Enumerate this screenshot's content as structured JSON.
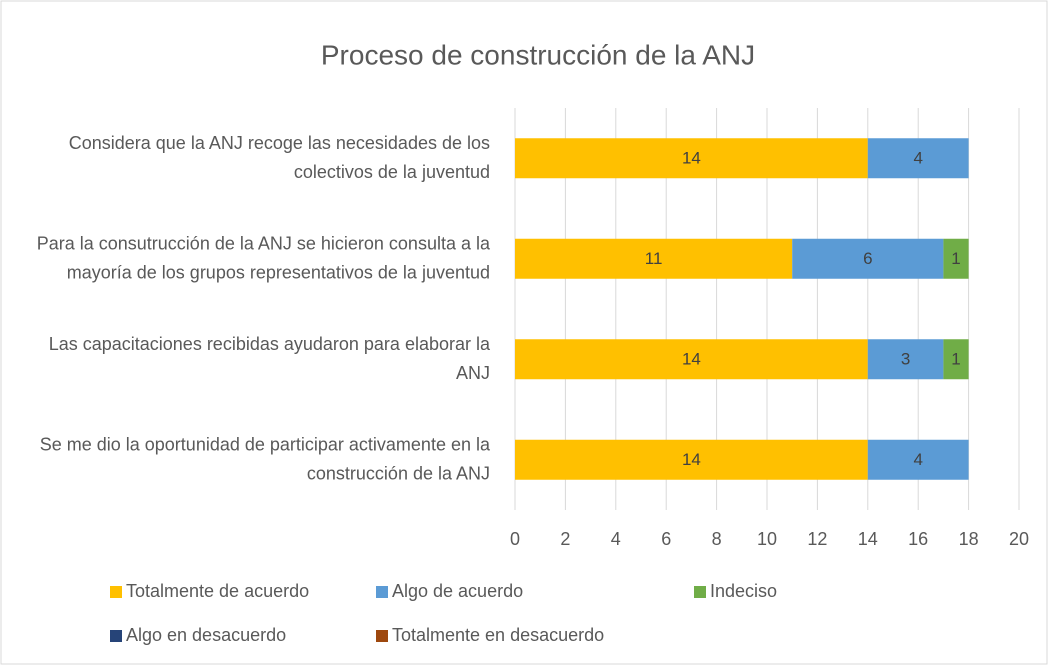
{
  "chart_data": {
    "type": "bar",
    "orientation": "horizontal",
    "stacked": true,
    "title": "Proceso de construcción de la ANJ",
    "categories": [
      "Considera que la ANJ recoge las necesidades de los colectivos de la juventud",
      "Para la consutrucción de la ANJ se hicieron consulta a la mayoría de los grupos representativos de la juventud",
      "Las capacitaciones recibidas ayudaron para elaborar la ANJ",
      "Se me dio la oportunidad de participar activamente en la construcción de la ANJ"
    ],
    "series": [
      {
        "name": "Totalmente de acuerdo",
        "color": "#FFC000",
        "values": [
          14,
          11,
          14,
          14
        ]
      },
      {
        "name": "Algo de acuerdo",
        "color": "#5B9BD5",
        "values": [
          4,
          6,
          3,
          4
        ]
      },
      {
        "name": "Indeciso",
        "color": "#70AD47",
        "values": [
          null,
          1,
          1,
          null
        ]
      },
      {
        "name": "Algo en desacuerdo",
        "color": "#264478",
        "values": [
          null,
          null,
          null,
          null
        ]
      },
      {
        "name": "Totalmente en desacuerdo",
        "color": "#9E480E",
        "values": [
          null,
          null,
          null,
          null
        ]
      }
    ],
    "xlim": [
      0,
      20
    ],
    "xticks": [
      0,
      2,
      4,
      6,
      8,
      10,
      12,
      14,
      16,
      18,
      20
    ],
    "grid": true,
    "legend": "bottom"
  }
}
